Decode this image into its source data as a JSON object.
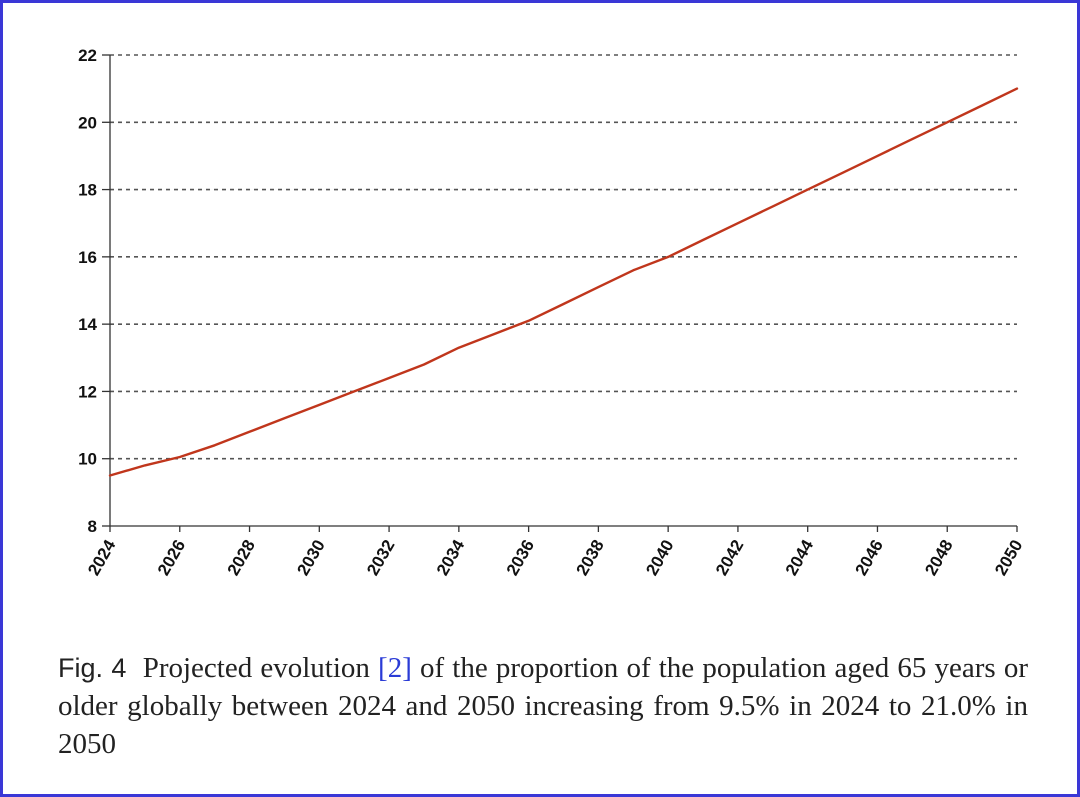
{
  "chart_data": {
    "type": "line",
    "title": "",
    "xlabel": "",
    "ylabel": "",
    "x": [
      2024,
      2025,
      2026,
      2027,
      2028,
      2029,
      2030,
      2031,
      2032,
      2033,
      2034,
      2035,
      2036,
      2037,
      2038,
      2039,
      2040,
      2041,
      2042,
      2043,
      2044,
      2045,
      2046,
      2047,
      2048,
      2049,
      2050
    ],
    "x_tick_labels": [
      "2024",
      "2026",
      "2028",
      "2030",
      "2032",
      "2034",
      "2036",
      "2038",
      "2040",
      "2042",
      "2044",
      "2046",
      "2048",
      "2050"
    ],
    "series": [
      {
        "name": "Population aged 65+ (%)",
        "color": "#c0361c",
        "values": [
          9.5,
          9.8,
          10.05,
          10.4,
          10.8,
          11.2,
          11.6,
          12.0,
          12.4,
          12.8,
          13.3,
          13.7,
          14.1,
          14.6,
          15.1,
          15.6,
          16.0,
          16.5,
          17.0,
          17.5,
          18.0,
          18.5,
          19.0,
          19.5,
          20.0,
          20.5,
          21.0
        ]
      }
    ],
    "y_tick_labels": [
      "8",
      "10",
      "12",
      "14",
      "16",
      "18",
      "20",
      "22"
    ],
    "ylim": [
      8,
      22
    ],
    "xlim": [
      2024,
      2050
    ],
    "grid": "horizontal dotted"
  },
  "caption": {
    "label": "Fig. 4",
    "text_before_ref": "Projected evolution ",
    "ref": "[2]",
    "text_after_ref": " of the proportion of the population aged 65 years or older globally between 2024 and 2050 increasing from 9.5% in 2024 to 21.0% in 2050"
  },
  "colors": {
    "frame": "#3a37d6",
    "grid": "#555555",
    "axis": "#333333",
    "line": "#c0361c",
    "ref": "#2a3bd6"
  }
}
